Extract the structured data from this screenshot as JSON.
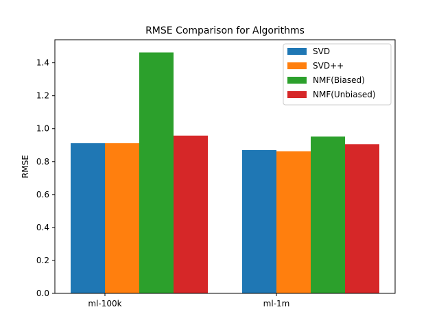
{
  "chart_data": {
    "type": "bar",
    "title": "RMSE Comparison for Algorithms",
    "xlabel": "",
    "ylabel": "RMSE",
    "categories": [
      "ml-100k",
      "ml-1m"
    ],
    "series": [
      {
        "name": "SVD",
        "color": "#1f77b4",
        "values": [
          0.912,
          0.87
        ]
      },
      {
        "name": "SVD++",
        "color": "#ff7f0e",
        "values": [
          0.912,
          0.863
        ]
      },
      {
        "name": "NMF(Biased)",
        "color": "#2ca02c",
        "values": [
          1.463,
          0.952
        ]
      },
      {
        "name": "NMF(Unbiased)",
        "color": "#d62728",
        "values": [
          0.958,
          0.906
        ]
      }
    ],
    "ylim": [
      0,
      1.54
    ],
    "yticks": [
      0.0,
      0.2,
      0.4,
      0.6,
      0.8,
      1.0,
      1.2,
      1.4
    ],
    "ytick_labels": [
      "0.0",
      "0.2",
      "0.4",
      "0.6",
      "0.8",
      "1.0",
      "1.2",
      "1.4"
    ],
    "grid": false,
    "legend_position": "top-right"
  }
}
